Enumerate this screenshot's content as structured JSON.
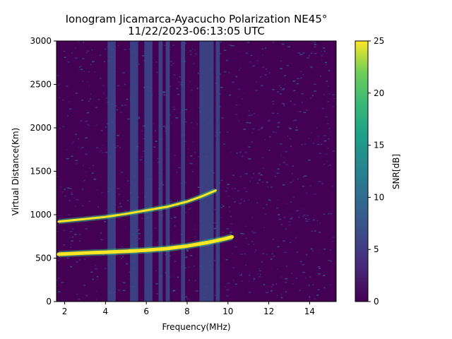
{
  "chart_data": {
    "type": "heatmap",
    "title_line1": "Ionogram Jicamarca-Ayacucho Polarization NE45°",
    "title_line2": "11/22/2023-06:13:05 UTC",
    "xlabel": "Frequency(MHz)",
    "ylabel": "Virtual Distance(Km)",
    "xlim": [
      1.6,
      15.3
    ],
    "ylim": [
      0,
      3000
    ],
    "x_ticks": [
      2,
      4,
      6,
      8,
      10,
      12,
      14
    ],
    "y_ticks": [
      0,
      500,
      1000,
      1500,
      2000,
      2500,
      3000
    ],
    "colorbar": {
      "label": "SNR[dB]",
      "range": [
        0,
        25
      ],
      "ticks": [
        0,
        5,
        10,
        15,
        20,
        25
      ],
      "colormap": "viridis"
    },
    "traces": [
      {
        "points": [
          [
            1.7,
            545
          ],
          [
            3,
            560
          ],
          [
            4,
            568
          ],
          [
            5,
            578
          ],
          [
            6,
            592
          ],
          [
            7,
            610
          ],
          [
            8,
            640
          ],
          [
            9,
            680
          ],
          [
            9.8,
            720
          ],
          [
            10.2,
            745
          ]
        ]
      },
      {
        "points": [
          [
            1.7,
            920
          ],
          [
            3,
            950
          ],
          [
            4,
            975
          ],
          [
            5,
            1010
          ],
          [
            6,
            1050
          ],
          [
            7,
            1090
          ],
          [
            8,
            1150
          ],
          [
            8.7,
            1210
          ],
          [
            9.4,
            1280
          ]
        ]
      }
    ],
    "interference_bands_mhz": [
      [
        4.1,
        4.5
      ],
      [
        5.2,
        5.6
      ],
      [
        5.9,
        6.3
      ],
      [
        6.6,
        6.8
      ],
      [
        6.95,
        7.15
      ],
      [
        7.7,
        7.9
      ],
      [
        8.6,
        9.3
      ],
      [
        9.4,
        9.6
      ]
    ]
  }
}
